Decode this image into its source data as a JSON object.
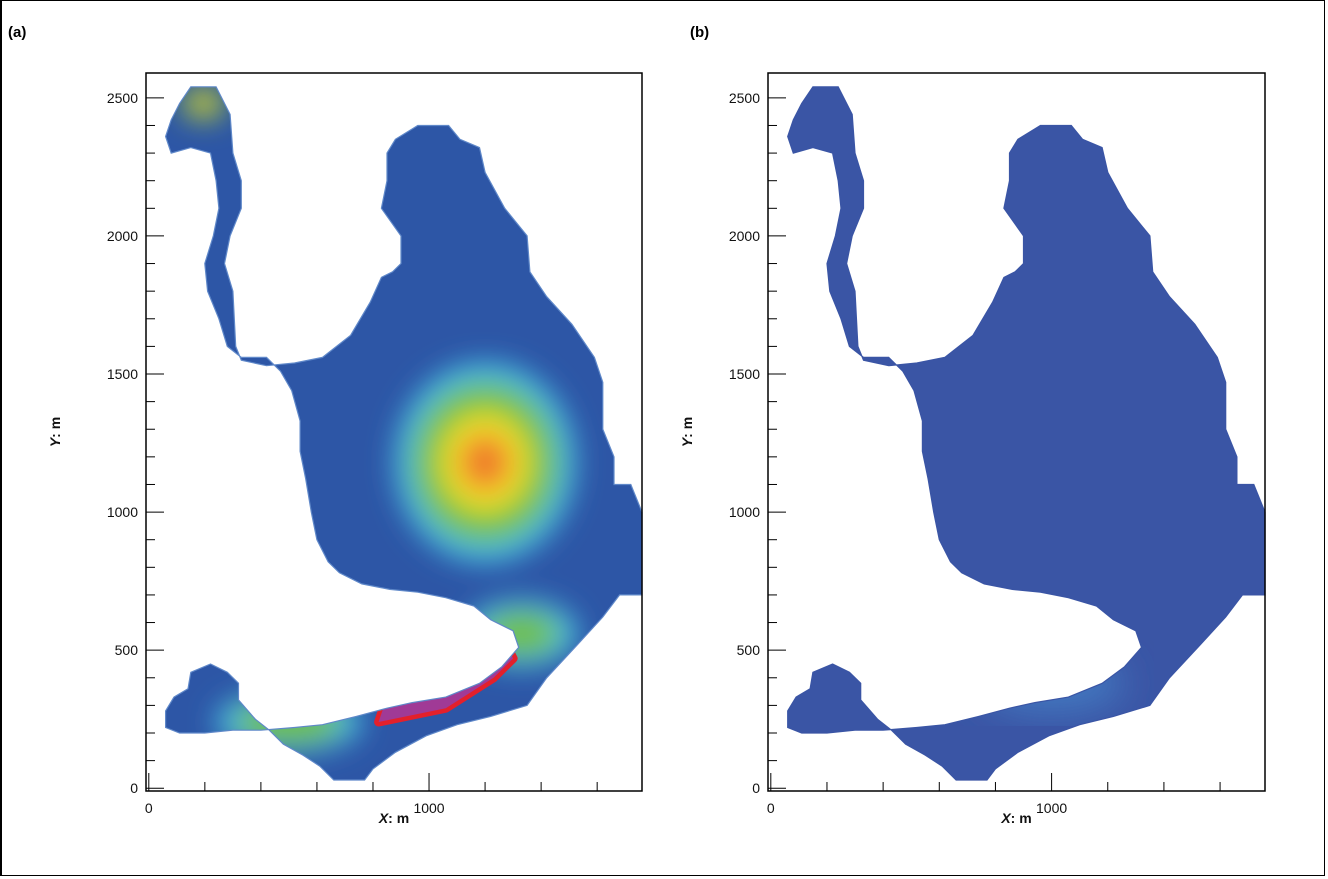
{
  "chart_data": [
    {
      "panel_label": "(a)",
      "type": "heatmap",
      "xlabel_var": "X",
      "xlabel_unit": ": m",
      "ylabel_var": "Y",
      "ylabel_unit": ": m",
      "xlim": [
        -10,
        1760
      ],
      "ylim": [
        -10,
        2590
      ],
      "x_ticks": [
        0,
        1000
      ],
      "y_ticks": [
        0,
        500,
        1000,
        1500,
        2000,
        2500
      ],
      "grid": false,
      "colors": {
        "blue": "#2d56a6",
        "cyan": "#46c3ea",
        "green": "#6fbf3f",
        "yellow": "#f3e728",
        "orange": "#f07a2c",
        "red": "#e3202b",
        "purple": "#a03a96"
      },
      "domain_outline": [
        [
          150,
          2540
        ],
        [
          240,
          2540
        ],
        [
          290,
          2440
        ],
        [
          300,
          2300
        ],
        [
          330,
          2200
        ],
        [
          330,
          2100
        ],
        [
          290,
          2000
        ],
        [
          270,
          1900
        ],
        [
          300,
          1800
        ],
        [
          310,
          1600
        ],
        [
          330,
          1550
        ],
        [
          420,
          1530
        ],
        [
          520,
          1540
        ],
        [
          620,
          1560
        ],
        [
          720,
          1640
        ],
        [
          790,
          1760
        ],
        [
          830,
          1850
        ],
        [
          870,
          1870
        ],
        [
          900,
          1900
        ],
        [
          900,
          2000
        ],
        [
          830,
          2100
        ],
        [
          850,
          2200
        ],
        [
          850,
          2300
        ],
        [
          880,
          2350
        ],
        [
          960,
          2400
        ],
        [
          1070,
          2400
        ],
        [
          1110,
          2350
        ],
        [
          1180,
          2320
        ],
        [
          1200,
          2230
        ],
        [
          1270,
          2100
        ],
        [
          1350,
          2000
        ],
        [
          1360,
          1870
        ],
        [
          1420,
          1780
        ],
        [
          1510,
          1680
        ],
        [
          1590,
          1560
        ],
        [
          1620,
          1470
        ],
        [
          1620,
          1300
        ],
        [
          1660,
          1200
        ],
        [
          1660,
          1100
        ],
        [
          1720,
          1100
        ],
        [
          1760,
          1000
        ],
        [
          1760,
          700
        ],
        [
          1680,
          700
        ],
        [
          1620,
          620
        ],
        [
          1530,
          520
        ],
        [
          1420,
          400
        ],
        [
          1350,
          300
        ],
        [
          1220,
          260
        ],
        [
          1100,
          230
        ],
        [
          990,
          190
        ],
        [
          880,
          130
        ],
        [
          800,
          70
        ],
        [
          770,
          30
        ],
        [
          660,
          30
        ],
        [
          610,
          80
        ],
        [
          550,
          120
        ],
        [
          480,
          160
        ],
        [
          430,
          210
        ],
        [
          380,
          250
        ],
        [
          320,
          320
        ],
        [
          320,
          380
        ],
        [
          280,
          420
        ],
        [
          220,
          450
        ],
        [
          150,
          420
        ],
        [
          140,
          360
        ],
        [
          90,
          330
        ],
        [
          60,
          280
        ],
        [
          60,
          220
        ],
        [
          110,
          200
        ],
        [
          200,
          200
        ],
        [
          300,
          210
        ],
        [
          400,
          210
        ],
        [
          520,
          220
        ],
        [
          620,
          230
        ],
        [
          740,
          260
        ],
        [
          850,
          290
        ],
        [
          940,
          310
        ],
        [
          1060,
          330
        ],
        [
          1180,
          380
        ],
        [
          1260,
          440
        ],
        [
          1320,
          510
        ],
        [
          1300,
          570
        ],
        [
          1220,
          610
        ],
        [
          1160,
          660
        ],
        [
          1060,
          690
        ],
        [
          960,
          710
        ],
        [
          860,
          720
        ],
        [
          760,
          740
        ],
        [
          680,
          780
        ],
        [
          640,
          820
        ],
        [
          600,
          900
        ],
        [
          580,
          1000
        ],
        [
          560,
          1120
        ],
        [
          540,
          1220
        ],
        [
          540,
          1330
        ],
        [
          510,
          1440
        ],
        [
          470,
          1510
        ],
        [
          420,
          1560
        ],
        [
          330,
          1560
        ],
        [
          280,
          1600
        ],
        [
          250,
          1700
        ],
        [
          210,
          1800
        ],
        [
          200,
          1900
        ],
        [
          230,
          2000
        ],
        [
          250,
          2100
        ],
        [
          240,
          2200
        ],
        [
          220,
          2300
        ],
        [
          150,
          2320
        ],
        [
          80,
          2300
        ],
        [
          60,
          2360
        ],
        [
          80,
          2420
        ],
        [
          110,
          2480
        ]
      ],
      "hotspots": [
        {
          "x": 1200,
          "y": 1180,
          "rx": 320,
          "ry": 360,
          "layer": [
            {
              "scale": 1.0,
              "color": "cyan"
            },
            {
              "scale": 0.82,
              "color": "green"
            },
            {
              "scale": 0.5,
              "color": "yellow"
            },
            {
              "scale": 0.3,
              "color": "orange"
            }
          ]
        },
        {
          "x": 195,
          "y": 2480,
          "rx": 80,
          "ry": 60,
          "layer": [
            {
              "scale": 1.0,
              "color": "green"
            },
            {
              "scale": 0.6,
              "color": "yellow"
            },
            {
              "scale": 0.3,
              "color": "orange"
            }
          ]
        },
        {
          "x": 500,
          "y": 240,
          "rx": 260,
          "ry": 110,
          "layer": [
            {
              "scale": 1.0,
              "color": "cyan"
            },
            {
              "scale": 0.75,
              "color": "green"
            }
          ]
        },
        {
          "x": 1330,
          "y": 560,
          "rx": 200,
          "ry": 120,
          "layer": [
            {
              "scale": 1.0,
              "color": "cyan"
            },
            {
              "scale": 0.7,
              "color": "green"
            }
          ]
        }
      ],
      "purple_zone": [
        [
          820,
          240
        ],
        [
          1060,
          290
        ],
        [
          1230,
          400
        ],
        [
          1300,
          470
        ],
        [
          1280,
          510
        ],
        [
          1190,
          510
        ],
        [
          1080,
          500
        ],
        [
          960,
          430
        ],
        [
          840,
          300
        ]
      ]
    },
    {
      "panel_label": "(b)",
      "type": "heatmap",
      "xlabel_var": "X",
      "xlabel_unit": ": m",
      "ylabel_var": "Y",
      "ylabel_unit": ": m",
      "xlim": [
        -10,
        1760
      ],
      "ylim": [
        -10,
        2590
      ],
      "x_ticks": [
        0,
        1000
      ],
      "y_ticks": [
        0,
        500,
        1000,
        1500,
        2000,
        2500
      ],
      "grid": false,
      "colors": {
        "blue": "#3a55a5",
        "light_blue": "#4277bf"
      },
      "domain_outline": [
        [
          150,
          2540
        ],
        [
          240,
          2540
        ],
        [
          290,
          2440
        ],
        [
          300,
          2300
        ],
        [
          330,
          2200
        ],
        [
          330,
          2100
        ],
        [
          290,
          2000
        ],
        [
          270,
          1900
        ],
        [
          300,
          1800
        ],
        [
          310,
          1600
        ],
        [
          330,
          1550
        ],
        [
          420,
          1530
        ],
        [
          520,
          1540
        ],
        [
          620,
          1560
        ],
        [
          720,
          1640
        ],
        [
          790,
          1760
        ],
        [
          830,
          1850
        ],
        [
          870,
          1870
        ],
        [
          900,
          1900
        ],
        [
          900,
          2000
        ],
        [
          830,
          2100
        ],
        [
          850,
          2200
        ],
        [
          850,
          2300
        ],
        [
          880,
          2350
        ],
        [
          960,
          2400
        ],
        [
          1070,
          2400
        ],
        [
          1110,
          2350
        ],
        [
          1180,
          2320
        ],
        [
          1200,
          2230
        ],
        [
          1270,
          2100
        ],
        [
          1350,
          2000
        ],
        [
          1360,
          1870
        ],
        [
          1420,
          1780
        ],
        [
          1510,
          1680
        ],
        [
          1590,
          1560
        ],
        [
          1620,
          1470
        ],
        [
          1620,
          1300
        ],
        [
          1660,
          1200
        ],
        [
          1660,
          1100
        ],
        [
          1720,
          1100
        ],
        [
          1760,
          1000
        ],
        [
          1760,
          700
        ],
        [
          1680,
          700
        ],
        [
          1620,
          620
        ],
        [
          1530,
          520
        ],
        [
          1420,
          400
        ],
        [
          1350,
          300
        ],
        [
          1220,
          260
        ],
        [
          1100,
          230
        ],
        [
          990,
          190
        ],
        [
          880,
          130
        ],
        [
          800,
          70
        ],
        [
          770,
          30
        ],
        [
          660,
          30
        ],
        [
          610,
          80
        ],
        [
          550,
          120
        ],
        [
          480,
          160
        ],
        [
          430,
          210
        ],
        [
          380,
          250
        ],
        [
          320,
          320
        ],
        [
          320,
          380
        ],
        [
          280,
          420
        ],
        [
          220,
          450
        ],
        [
          150,
          420
        ],
        [
          140,
          360
        ],
        [
          90,
          330
        ],
        [
          60,
          280
        ],
        [
          60,
          220
        ],
        [
          110,
          200
        ],
        [
          200,
          200
        ],
        [
          300,
          210
        ],
        [
          400,
          210
        ],
        [
          520,
          220
        ],
        [
          620,
          230
        ],
        [
          740,
          260
        ],
        [
          850,
          290
        ],
        [
          940,
          310
        ],
        [
          1060,
          330
        ],
        [
          1180,
          380
        ],
        [
          1260,
          440
        ],
        [
          1320,
          510
        ],
        [
          1300,
          570
        ],
        [
          1220,
          610
        ],
        [
          1160,
          660
        ],
        [
          1060,
          690
        ],
        [
          960,
          710
        ],
        [
          860,
          720
        ],
        [
          760,
          740
        ],
        [
          680,
          780
        ],
        [
          640,
          820
        ],
        [
          600,
          900
        ],
        [
          580,
          1000
        ],
        [
          560,
          1120
        ],
        [
          540,
          1220
        ],
        [
          540,
          1330
        ],
        [
          510,
          1440
        ],
        [
          470,
          1510
        ],
        [
          420,
          1560
        ],
        [
          330,
          1560
        ],
        [
          280,
          1600
        ],
        [
          250,
          1700
        ],
        [
          210,
          1800
        ],
        [
          200,
          1900
        ],
        [
          230,
          2000
        ],
        [
          250,
          2100
        ],
        [
          240,
          2200
        ],
        [
          220,
          2300
        ],
        [
          150,
          2320
        ],
        [
          80,
          2300
        ],
        [
          60,
          2360
        ],
        [
          80,
          2420
        ],
        [
          110,
          2480
        ]
      ],
      "hotspots": [
        {
          "x": 1000,
          "y": 380,
          "rx": 260,
          "ry": 110,
          "layer": [
            {
              "scale": 1.0,
              "color": "light_blue"
            }
          ]
        }
      ]
    }
  ]
}
